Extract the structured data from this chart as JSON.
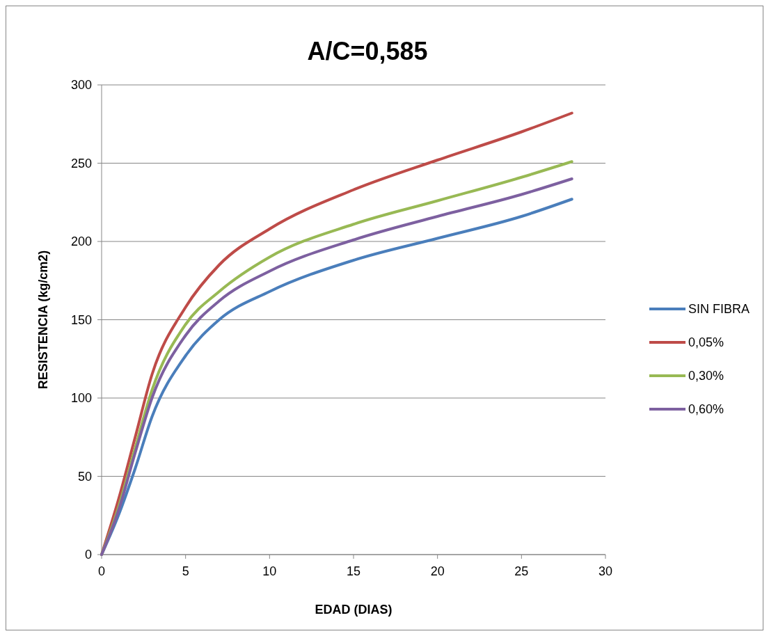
{
  "chart_data": {
    "type": "line",
    "title": "A/C=0,585",
    "xlabel": "EDAD (DIAS)",
    "ylabel": "RESISTENCIA  (kg/cm2)",
    "x": [
      0,
      1,
      2,
      3,
      5,
      7,
      10,
      15,
      20,
      25,
      28
    ],
    "series": [
      {
        "name": "SIN FIBRA",
        "color": "#4a7ebb",
        "values": [
          0,
          25,
          55,
          88,
          127,
          150,
          168,
          188,
          202,
          216,
          227
        ]
      },
      {
        "name": "0,05%",
        "color": "#be4b48",
        "values": [
          0,
          35,
          75,
          115,
          158,
          185,
          208,
          233,
          252,
          270,
          282
        ]
      },
      {
        "name": "0,30%",
        "color": "#98b954",
        "values": [
          0,
          30,
          68,
          105,
          147,
          168,
          190,
          211,
          226,
          241,
          251
        ]
      },
      {
        "name": "0,60%",
        "color": "#7d60a0",
        "values": [
          0,
          28,
          65,
          100,
          140,
          162,
          181,
          201,
          216,
          230,
          240
        ]
      }
    ],
    "xlim": [
      0,
      30
    ],
    "xticks": [
      0,
      5,
      10,
      15,
      20,
      25,
      30
    ],
    "ylim": [
      0,
      300
    ],
    "yticks": [
      0,
      50,
      100,
      150,
      200,
      250,
      300
    ],
    "grid": "y",
    "legend": "right",
    "marker": "none",
    "line_style": "solid"
  }
}
